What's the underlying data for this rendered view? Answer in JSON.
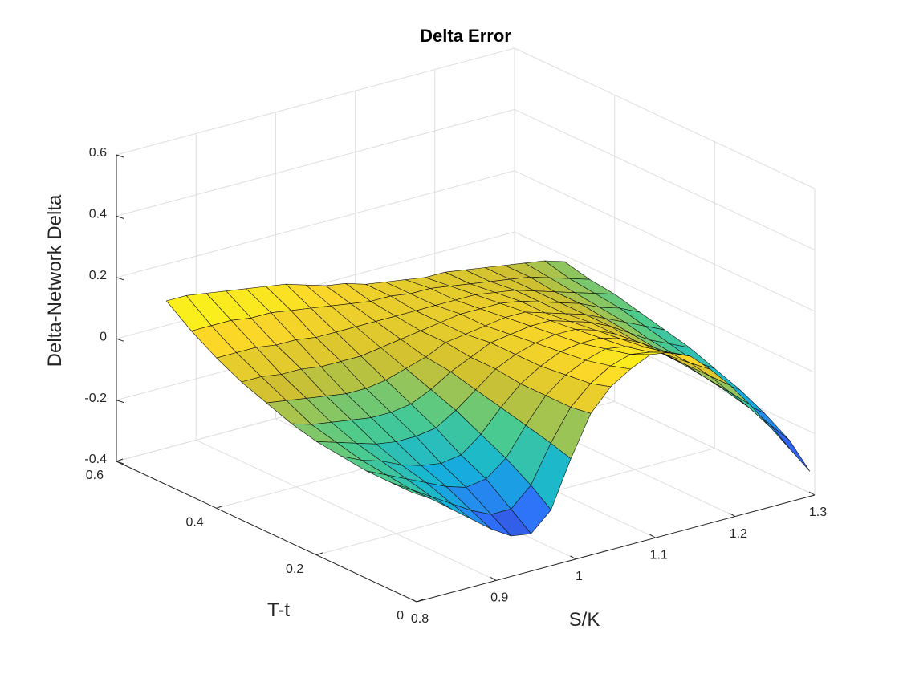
{
  "chart_data": {
    "type": "surface",
    "title": "Delta Error",
    "xlabel": "S/K",
    "ylabel": "T-t",
    "zlabel": "Delta-Network Delta",
    "xlim": [
      0.8,
      1.3
    ],
    "ylim": [
      0,
      0.6
    ],
    "zlim": [
      -0.4,
      0.6
    ],
    "x_ticks": [
      0.8,
      0.9,
      1,
      1.1,
      1.2,
      1.3
    ],
    "y_ticks": [
      0,
      0.2,
      0.4,
      0.6
    ],
    "z_ticks": [
      -0.4,
      -0.2,
      0,
      0.2,
      0.4,
      0.6
    ],
    "x_tick_labels": [
      "0.8",
      "0.9",
      "1",
      "1.1",
      "1.2",
      "1.3"
    ],
    "y_tick_labels": [
      "0",
      "0.2",
      "0.4",
      "0.6"
    ],
    "z_tick_labels": [
      "-0.4",
      "-0.2",
      "0",
      "0.2",
      "0.4",
      "0.6"
    ],
    "grid": true,
    "colormap": "parula",
    "colormap_stops": [
      "#3e26a8",
      "#2f6ffb",
      "#13b5d8",
      "#4ccb8d",
      "#cfc031",
      "#fbd729",
      "#f9fb15"
    ],
    "grid_x": [
      0.8,
      0.825,
      0.85,
      0.875,
      0.9,
      0.925,
      0.95,
      0.975,
      1.0,
      1.025,
      1.05,
      1.075,
      1.1,
      1.125,
      1.15,
      1.175,
      1.2,
      1.225,
      1.25,
      1.275,
      1.3
    ],
    "grid_y": [
      0.01,
      0.05,
      0.1,
      0.15,
      0.2,
      0.25,
      0.3,
      0.35,
      0.4,
      0.45,
      0.5
    ],
    "z": [
      [
        -0.05,
        -0.09,
        -0.14,
        -0.19,
        -0.24,
        -0.28,
        -0.29,
        -0.23,
        -0.08,
        0.05,
        0.12,
        0.16,
        0.19,
        0.18,
        0.15,
        0.09,
        0.02,
        -0.06,
        -0.15,
        -0.24,
        -0.33
      ],
      [
        -0.05,
        -0.09,
        -0.13,
        -0.17,
        -0.21,
        -0.24,
        -0.24,
        -0.18,
        -0.06,
        0.04,
        0.1,
        0.14,
        0.16,
        0.15,
        0.13,
        0.08,
        0.02,
        -0.05,
        -0.12,
        -0.19,
        -0.26
      ],
      [
        -0.05,
        -0.08,
        -0.11,
        -0.14,
        -0.17,
        -0.19,
        -0.18,
        -0.13,
        -0.04,
        0.04,
        0.09,
        0.12,
        0.14,
        0.13,
        0.11,
        0.07,
        0.02,
        -0.04,
        -0.1,
        -0.16,
        -0.21
      ],
      [
        -0.04,
        -0.07,
        -0.09,
        -0.12,
        -0.14,
        -0.15,
        -0.14,
        -0.09,
        -0.02,
        0.04,
        0.08,
        0.11,
        0.12,
        0.12,
        0.1,
        0.07,
        0.02,
        -0.03,
        -0.08,
        -0.13,
        -0.17
      ],
      [
        -0.03,
        -0.05,
        -0.07,
        -0.09,
        -0.1,
        -0.1,
        -0.09,
        -0.05,
        0.0,
        0.05,
        0.08,
        0.1,
        0.11,
        0.11,
        0.09,
        0.06,
        0.02,
        -0.02,
        -0.06,
        -0.1,
        -0.14
      ],
      [
        -0.01,
        -0.03,
        -0.04,
        -0.05,
        -0.06,
        -0.06,
        -0.05,
        -0.02,
        0.02,
        0.05,
        0.08,
        0.09,
        0.1,
        0.1,
        0.08,
        0.06,
        0.03,
        -0.01,
        -0.05,
        -0.08,
        -0.11
      ],
      [
        0.02,
        0.01,
        0.0,
        -0.01,
        -0.02,
        -0.02,
        -0.01,
        0.01,
        0.03,
        0.06,
        0.07,
        0.08,
        0.09,
        0.09,
        0.07,
        0.05,
        0.03,
        0.0,
        -0.03,
        -0.06,
        -0.09
      ],
      [
        0.05,
        0.05,
        0.04,
        0.04,
        0.03,
        0.03,
        0.03,
        0.04,
        0.05,
        0.06,
        0.07,
        0.08,
        0.08,
        0.08,
        0.07,
        0.05,
        0.03,
        0.01,
        -0.02,
        -0.04,
        -0.07
      ],
      [
        0.09,
        0.09,
        0.09,
        0.08,
        0.08,
        0.07,
        0.07,
        0.07,
        0.07,
        0.07,
        0.07,
        0.07,
        0.07,
        0.07,
        0.06,
        0.05,
        0.03,
        0.01,
        -0.01,
        -0.03,
        -0.05
      ],
      [
        0.14,
        0.14,
        0.14,
        0.13,
        0.13,
        0.12,
        0.11,
        0.1,
        0.09,
        0.08,
        0.08,
        0.07,
        0.07,
        0.06,
        0.05,
        0.04,
        0.03,
        0.02,
        0.0,
        -0.02,
        -0.04
      ],
      [
        0.2,
        0.2,
        0.19,
        0.18,
        0.17,
        0.16,
        0.15,
        0.13,
        0.11,
        0.1,
        0.08,
        0.07,
        0.06,
        0.05,
        0.05,
        0.04,
        0.03,
        0.02,
        0.01,
        0.0,
        -0.02
      ]
    ]
  }
}
